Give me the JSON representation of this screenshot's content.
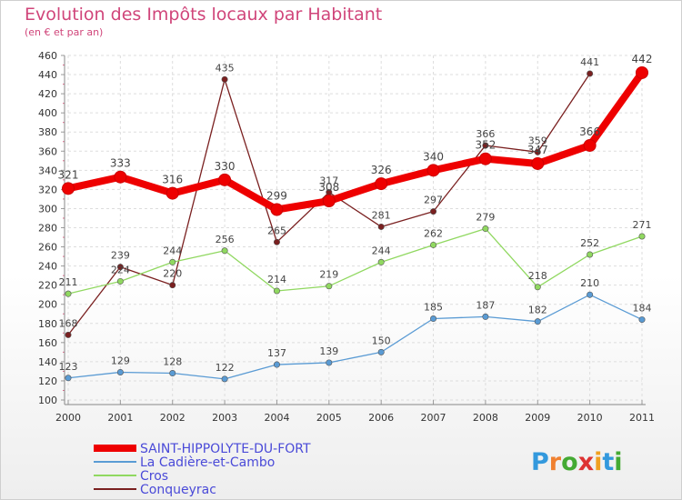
{
  "chart_data": {
    "type": "line",
    "title": "Evolution des Impôts locaux par Habitant",
    "subtitle": "(en € et par an)",
    "x": [
      "2000",
      "2001",
      "2002",
      "2003",
      "2004",
      "2005",
      "2006",
      "2007",
      "2008",
      "2009",
      "2010",
      "2011"
    ],
    "ylim": [
      100,
      460
    ],
    "yticks": [
      100,
      120,
      140,
      160,
      180,
      200,
      220,
      240,
      260,
      280,
      300,
      320,
      340,
      360,
      380,
      400,
      420,
      440,
      460
    ],
    "grid": true,
    "legend_position": "bottom-left",
    "series": [
      {
        "name": "SAINT-HIPPOLYTE-DU-FORT",
        "color": "#ee0000",
        "emphasis": true,
        "values": [
          321,
          333,
          316,
          330,
          299,
          308,
          326,
          340,
          352,
          347,
          366,
          442
        ],
        "labels": [
          "321",
          "333",
          "316",
          "330",
          "299",
          "308",
          "326",
          "340",
          "352",
          "347",
          "366",
          "442"
        ]
      },
      {
        "name": "La Cadière-et-Cambo",
        "color": "#5a9bd4",
        "emphasis": false,
        "values": [
          123,
          129,
          128,
          122,
          137,
          139,
          150,
          185,
          187,
          182,
          210,
          184
        ],
        "labels": [
          "123",
          "129",
          "128",
          "122",
          "137",
          "139",
          "150",
          "185",
          "187",
          "182",
          "210",
          "184"
        ]
      },
      {
        "name": "Cros",
        "color": "#90d860",
        "emphasis": false,
        "values": [
          211,
          224,
          244,
          256,
          214,
          219,
          244,
          262,
          279,
          218,
          252,
          271
        ],
        "labels": [
          "211",
          "224",
          "244",
          "256",
          "214",
          "219",
          "244",
          "262",
          "279",
          "218",
          "252",
          "271"
        ]
      },
      {
        "name": "Conqueyrac",
        "color": "#7a2020",
        "emphasis": false,
        "values": [
          168,
          239,
          220,
          435,
          265,
          317,
          281,
          297,
          366,
          359,
          441,
          null
        ],
        "labels": [
          "168",
          "239",
          "220",
          "435",
          "265",
          "317",
          "281",
          "297",
          "366",
          "359",
          "441",
          ""
        ]
      }
    ]
  },
  "logo": {
    "text": "Proxiti",
    "letter_colors": [
      "#3399dd",
      "#f08030",
      "#44aa33",
      "#dd3333",
      "#f0a020",
      "#3399dd",
      "#44aa33"
    ]
  }
}
